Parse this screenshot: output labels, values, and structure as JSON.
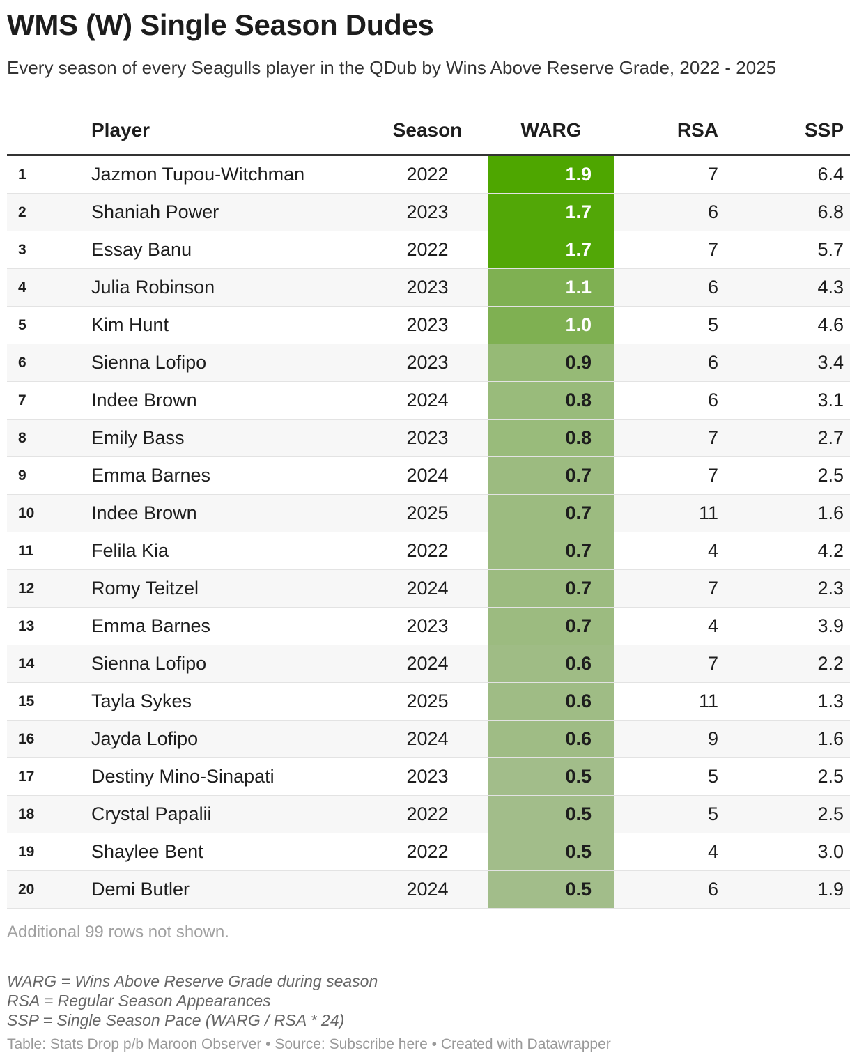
{
  "title": "WMS (W) Single Season Dudes",
  "subtitle": "Every season of every Seagulls player in the QDub by Wins Above Reserve Grade, 2022 - 2025",
  "colors": {
    "warg_high": "#4ea600",
    "warg_low": "#a2bd8a",
    "text_light": "#ffffff",
    "text_dark": "#1d1d1d"
  },
  "chart_data": {
    "type": "table",
    "columns": [
      "",
      "Player",
      "Season",
      "WARG",
      "RSA",
      "SSP"
    ],
    "rows": [
      {
        "rank": "1",
        "player": "Jazmon Tupou-Witchman",
        "season": "2022",
        "warg": 1.9,
        "warg_label": "1.9",
        "rsa": "7",
        "ssp": "6.4"
      },
      {
        "rank": "2",
        "player": "Shaniah Power",
        "season": "2023",
        "warg": 1.7,
        "warg_label": "1.7",
        "rsa": "6",
        "ssp": "6.8"
      },
      {
        "rank": "3",
        "player": "Essay Banu",
        "season": "2022",
        "warg": 1.7,
        "warg_label": "1.7",
        "rsa": "7",
        "ssp": "5.7"
      },
      {
        "rank": "4",
        "player": "Julia Robinson",
        "season": "2023",
        "warg": 1.1,
        "warg_label": "1.1",
        "rsa": "6",
        "ssp": "4.3"
      },
      {
        "rank": "5",
        "player": "Kim Hunt",
        "season": "2023",
        "warg": 1.0,
        "warg_label": "1.0",
        "rsa": "5",
        "ssp": "4.6"
      },
      {
        "rank": "6",
        "player": "Sienna Lofipo",
        "season": "2023",
        "warg": 0.9,
        "warg_label": "0.9",
        "rsa": "6",
        "ssp": "3.4"
      },
      {
        "rank": "7",
        "player": "Indee Brown",
        "season": "2024",
        "warg": 0.8,
        "warg_label": "0.8",
        "rsa": "6",
        "ssp": "3.1"
      },
      {
        "rank": "8",
        "player": "Emily Bass",
        "season": "2023",
        "warg": 0.8,
        "warg_label": "0.8",
        "rsa": "7",
        "ssp": "2.7"
      },
      {
        "rank": "9",
        "player": "Emma Barnes",
        "season": "2024",
        "warg": 0.7,
        "warg_label": "0.7",
        "rsa": "7",
        "ssp": "2.5"
      },
      {
        "rank": "10",
        "player": "Indee Brown",
        "season": "2025",
        "warg": 0.7,
        "warg_label": "0.7",
        "rsa": "11",
        "ssp": "1.6"
      },
      {
        "rank": "11",
        "player": "Felila Kia",
        "season": "2022",
        "warg": 0.7,
        "warg_label": "0.7",
        "rsa": "4",
        "ssp": "4.2"
      },
      {
        "rank": "12",
        "player": "Romy Teitzel",
        "season": "2024",
        "warg": 0.7,
        "warg_label": "0.7",
        "rsa": "7",
        "ssp": "2.3"
      },
      {
        "rank": "13",
        "player": "Emma Barnes",
        "season": "2023",
        "warg": 0.7,
        "warg_label": "0.7",
        "rsa": "4",
        "ssp": "3.9"
      },
      {
        "rank": "14",
        "player": "Sienna Lofipo",
        "season": "2024",
        "warg": 0.6,
        "warg_label": "0.6",
        "rsa": "7",
        "ssp": "2.2"
      },
      {
        "rank": "15",
        "player": "Tayla Sykes",
        "season": "2025",
        "warg": 0.6,
        "warg_label": "0.6",
        "rsa": "11",
        "ssp": "1.3"
      },
      {
        "rank": "16",
        "player": "Jayda Lofipo",
        "season": "2024",
        "warg": 0.6,
        "warg_label": "0.6",
        "rsa": "9",
        "ssp": "1.6"
      },
      {
        "rank": "17",
        "player": "Destiny Mino-Sinapati",
        "season": "2023",
        "warg": 0.5,
        "warg_label": "0.5",
        "rsa": "5",
        "ssp": "2.5"
      },
      {
        "rank": "18",
        "player": "Crystal Papalii",
        "season": "2022",
        "warg": 0.5,
        "warg_label": "0.5",
        "rsa": "5",
        "ssp": "2.5"
      },
      {
        "rank": "19",
        "player": "Shaylee Bent",
        "season": "2022",
        "warg": 0.5,
        "warg_label": "0.5",
        "rsa": "4",
        "ssp": "3.0"
      },
      {
        "rank": "20",
        "player": "Demi Butler",
        "season": "2024",
        "warg": 0.5,
        "warg_label": "0.5",
        "rsa": "6",
        "ssp": "1.9"
      }
    ]
  },
  "rows_note": "Additional 99 rows not shown.",
  "notes": [
    "WARG = Wins Above Reserve Grade during season",
    "RSA = Regular Season Appearances",
    "SSP = Single Season Pace (WARG / RSA * 24)"
  ],
  "footer": "Table: Stats Drop p/b Maroon Observer • Source: Subscribe here • Created with Datawrapper"
}
